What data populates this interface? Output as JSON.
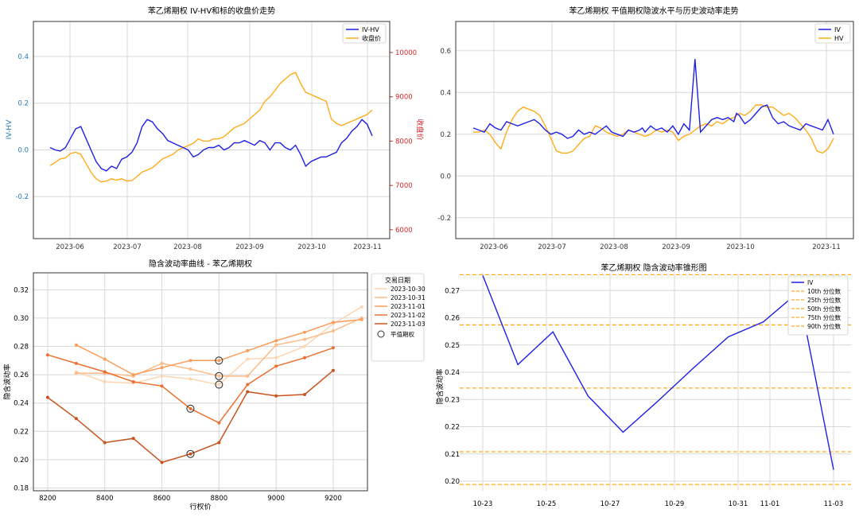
{
  "chart_data": [
    {
      "type": "line",
      "title": "苯乙烯期权 IV-HV和标的收盘价走势",
      "ylabel_left": "IV-HV",
      "ylabel_right": "收盘价",
      "xticks": [
        "2023-06",
        "2023-07",
        "2023-08",
        "2023-09",
        "2023-10",
        "2023-11"
      ],
      "yticks_left": [
        "0.4",
        "0.2",
        "0.0",
        "-0.2"
      ],
      "yticks_right": [
        "10000",
        "9000",
        "8000",
        "7000",
        "6000"
      ],
      "ylim_left": [
        -0.38,
        0.55
      ],
      "ylim_right": [
        5800,
        10700
      ],
      "colors": {
        "ivhv": "#1f1fe6",
        "close": "#ffab1a",
        "left_axis": "#1f77b4",
        "right_axis": "#d62728"
      },
      "series": [
        {
          "name": "IV-HV",
          "t": [
            0,
            1,
            2,
            3,
            4,
            5,
            6,
            7,
            8,
            9,
            10,
            11,
            12,
            13,
            14,
            15,
            16,
            17,
            18,
            19,
            20,
            21,
            22,
            23,
            24,
            25,
            26,
            27,
            28,
            29,
            30,
            31,
            32,
            33,
            34,
            35,
            36,
            37,
            38,
            39,
            40,
            41,
            42,
            43,
            44,
            45,
            46,
            47,
            48,
            49,
            50,
            51,
            52,
            53,
            54,
            55,
            56,
            57,
            58,
            59,
            60,
            61,
            62,
            63
          ],
          "values": [
            0.01,
            0.0,
            -0.005,
            0.01,
            0.05,
            0.09,
            0.1,
            0.05,
            0.0,
            -0.05,
            -0.08,
            -0.09,
            -0.07,
            -0.08,
            -0.04,
            -0.03,
            -0.01,
            0.03,
            0.1,
            0.13,
            0.12,
            0.09,
            0.07,
            0.04,
            0.03,
            0.02,
            0.01,
            0.0,
            -0.03,
            -0.02,
            0.0,
            0.01,
            0.01,
            0.02,
            0.0,
            0.01,
            0.03,
            0.03,
            0.04,
            0.03,
            0.02,
            0.04,
            0.03,
            0.0,
            0.03,
            0.03,
            0.01,
            0.0,
            0.02,
            -0.02,
            -0.07,
            -0.05,
            -0.04,
            -0.03,
            -0.03,
            -0.02,
            -0.01,
            0.03,
            0.05,
            0.08,
            0.1,
            0.13,
            0.11,
            0.06
          ]
        },
        {
          "name": "收盘价",
          "t": [
            0,
            1,
            2,
            3,
            4,
            5,
            6,
            7,
            8,
            9,
            10,
            11,
            12,
            13,
            14,
            15,
            16,
            17,
            18,
            19,
            20,
            21,
            22,
            23,
            24,
            25,
            26,
            27,
            28,
            29,
            30,
            31,
            32,
            33,
            34,
            35,
            36,
            37,
            38,
            39,
            40,
            41,
            42,
            43,
            44,
            45,
            46,
            47,
            48,
            49,
            50,
            51,
            52,
            53,
            54,
            55,
            56,
            57,
            58,
            59,
            60,
            61,
            62,
            63
          ],
          "values": [
            7450,
            7520,
            7600,
            7620,
            7720,
            7750,
            7700,
            7500,
            7300,
            7150,
            7080,
            7100,
            7150,
            7120,
            7150,
            7100,
            7110,
            7200,
            7300,
            7350,
            7400,
            7500,
            7600,
            7650,
            7700,
            7800,
            7850,
            7900,
            7950,
            8050,
            8000,
            8000,
            8050,
            8050,
            8100,
            8200,
            8300,
            8350,
            8400,
            8500,
            8600,
            8700,
            8900,
            9000,
            9150,
            9300,
            9400,
            9500,
            9550,
            9300,
            9100,
            9050,
            9000,
            8950,
            8900,
            8500,
            8400,
            8350,
            8400,
            8450,
            8500,
            8550,
            8600,
            8700
          ]
        }
      ]
    },
    {
      "type": "line",
      "title": "苯乙烯期权 平值期权隐波水平与历史波动率走势",
      "xticks": [
        "2023-06",
        "2023-07",
        "2023-08",
        "2023-09",
        "2023-10",
        "2023-11"
      ],
      "yticks": [
        "0.6",
        "0.4",
        "0.2",
        "0.0",
        "-0.2"
      ],
      "ylim": [
        -0.3,
        0.74
      ],
      "colors": {
        "iv": "#1f1fe6",
        "hv": "#ffab1a"
      },
      "series": [
        {
          "name": "IV",
          "t": [
            0,
            2,
            4,
            6,
            7,
            8,
            10,
            12,
            14,
            16,
            18,
            20,
            22,
            24,
            26,
            28,
            30,
            32,
            34,
            36,
            38,
            40,
            42,
            44,
            46,
            48,
            50,
            52,
            54,
            56,
            58,
            60,
            61,
            62,
            64,
            66,
            68,
            70,
            72,
            74,
            76,
            78,
            80,
            82,
            84,
            86,
            88,
            90,
            92,
            94,
            95,
            96,
            98,
            100,
            102,
            104,
            106,
            108,
            110,
            112,
            114,
            116,
            118,
            120,
            122,
            124,
            126,
            128,
            130
          ],
          "values": [
            0.23,
            0.22,
            0.21,
            0.25,
            0.24,
            0.23,
            0.22,
            0.26,
            0.25,
            0.24,
            0.25,
            0.26,
            0.27,
            0.25,
            0.22,
            0.2,
            0.21,
            0.2,
            0.18,
            0.19,
            0.22,
            0.2,
            0.21,
            0.2,
            0.22,
            0.24,
            0.21,
            0.2,
            0.19,
            0.22,
            0.21,
            0.22,
            0.23,
            0.21,
            0.24,
            0.22,
            0.23,
            0.21,
            0.24,
            0.2,
            0.25,
            0.22,
            0.56,
            0.21,
            0.24,
            0.27,
            0.28,
            0.27,
            0.28,
            0.26,
            0.3,
            0.29,
            0.25,
            0.27,
            0.3,
            0.33,
            0.34,
            0.28,
            0.25,
            0.26,
            0.24,
            0.23,
            0.22,
            0.25,
            0.24,
            0.23,
            0.22,
            0.27,
            0.2
          ]
        },
        {
          "name": "HV",
          "t": [
            0,
            2,
            4,
            6,
            8,
            10,
            12,
            14,
            16,
            18,
            20,
            22,
            24,
            26,
            28,
            30,
            32,
            34,
            36,
            38,
            40,
            42,
            44,
            46,
            48,
            50,
            52,
            54,
            56,
            58,
            60,
            62,
            64,
            66,
            68,
            70,
            72,
            74,
            76,
            78,
            80,
            82,
            84,
            86,
            88,
            90,
            92,
            94,
            96,
            98,
            100,
            102,
            104,
            106,
            108,
            110,
            112,
            114,
            116,
            118,
            120,
            122,
            124,
            126,
            128,
            130
          ],
          "values": [
            0.21,
            0.21,
            0.22,
            0.2,
            0.16,
            0.13,
            0.21,
            0.27,
            0.31,
            0.33,
            0.32,
            0.31,
            0.29,
            0.24,
            0.18,
            0.12,
            0.11,
            0.11,
            0.12,
            0.15,
            0.18,
            0.19,
            0.24,
            0.23,
            0.21,
            0.2,
            0.19,
            0.2,
            0.22,
            0.21,
            0.2,
            0.19,
            0.2,
            0.22,
            0.21,
            0.22,
            0.21,
            0.17,
            0.19,
            0.2,
            0.22,
            0.24,
            0.25,
            0.24,
            0.26,
            0.25,
            0.27,
            0.28,
            0.3,
            0.29,
            0.31,
            0.34,
            0.34,
            0.33,
            0.33,
            0.31,
            0.29,
            0.3,
            0.28,
            0.25,
            0.22,
            0.18,
            0.12,
            0.11,
            0.13,
            0.18
          ]
        }
      ]
    },
    {
      "type": "line",
      "title": "隐含波动率曲线 - 苯乙烯期权",
      "xlabel": "行权价",
      "ylabel": "隐含波动率",
      "xlim": [
        8150,
        9320
      ],
      "ylim": [
        0.178,
        0.332
      ],
      "xticks": [
        8200,
        8400,
        8600,
        8800,
        9000,
        9200
      ],
      "yticks": [
        0.18,
        0.2,
        0.22,
        0.24,
        0.26,
        0.28,
        0.3,
        0.32
      ],
      "legend_title": "交易日期",
      "atm_label": "平值期权",
      "series": [
        {
          "name": "2023-10-30",
          "color": "#fdd5b1",
          "x": [
            8300,
            8400,
            8500,
            8600,
            8700,
            8800,
            8900,
            9000,
            9100,
            9200,
            9300
          ],
          "values": [
            0.262,
            0.255,
            0.254,
            0.259,
            0.257,
            0.253,
            0.271,
            0.272,
            0.28,
            0.296,
            0.308
          ]
        },
        {
          "name": "2023-10-31",
          "color": "#fdbb88",
          "x": [
            8300,
            8400,
            8500,
            8600,
            8700,
            8800,
            8900,
            9000,
            9100,
            9200,
            9300
          ],
          "values": [
            0.261,
            0.261,
            0.259,
            0.268,
            0.264,
            0.259,
            0.259,
            0.281,
            0.285,
            0.291,
            0.3
          ]
        },
        {
          "name": "2023-11-01",
          "color": "#fc9c5a",
          "x": [
            8300,
            8400,
            8500,
            8600,
            8700,
            8800,
            8900,
            9000,
            9100,
            9200,
            9300
          ],
          "values": [
            0.281,
            0.271,
            0.26,
            0.265,
            0.27,
            0.27,
            0.277,
            0.284,
            0.29,
            0.297,
            0.299
          ]
        },
        {
          "name": "2023-11-02",
          "color": "#ec6f30",
          "x": [
            8200,
            8300,
            8400,
            8500,
            8600,
            8700,
            8800,
            8900,
            9000,
            9100,
            9200
          ],
          "values": [
            0.274,
            0.268,
            0.262,
            0.255,
            0.252,
            0.236,
            0.226,
            0.253,
            0.266,
            0.272,
            0.279
          ]
        },
        {
          "name": "2023-11-03",
          "color": "#c9531e",
          "x": [
            8200,
            8300,
            8400,
            8500,
            8600,
            8700,
            8800,
            8900,
            9000,
            9100,
            9200
          ],
          "values": [
            0.244,
            0.229,
            0.212,
            0.215,
            0.198,
            0.204,
            0.212,
            0.248,
            0.245,
            0.246,
            0.263
          ]
        }
      ],
      "atm_points": [
        {
          "x": 8800,
          "y": 0.253
        },
        {
          "x": 8800,
          "y": 0.259
        },
        {
          "x": 8800,
          "y": 0.27
        },
        {
          "x": 8700,
          "y": 0.236
        },
        {
          "x": 8700,
          "y": 0.204
        }
      ]
    },
    {
      "type": "line",
      "title": "苯乙烯期权 隐含波动率锥形图",
      "ylabel": "隐含波动率",
      "ylim": [
        0.1965,
        0.2765
      ],
      "xlim": [
        -0.15,
        4.65
      ],
      "yticks": [
        0.2,
        0.21,
        0.22,
        0.23,
        0.24,
        0.25,
        0.26,
        0.27
      ],
      "xticks": [
        {
          "label": "10-23",
          "pos": 0
        },
        {
          "label": "10-25",
          "pos": 1
        },
        {
          "label": "10-27",
          "pos": 2
        },
        {
          "label": "10-29",
          "pos": 3
        },
        {
          "label": "10-31",
          "pos": 4
        },
        {
          "label": "11-01",
          "pos": 4.5
        },
        {
          "label": "11-03",
          "pos": 5
        }
      ],
      "series": [
        {
          "name": "IV",
          "color": "#1f1fe6",
          "x": [
            0,
            0.5,
            1,
            1.5,
            2,
            2.5,
            3,
            3.5,
            4,
            4.5,
            5
          ],
          "values": [
            0.2755,
            0.2428,
            0.2548,
            0.2313,
            0.218,
            0.2295,
            0.2415,
            0.253,
            0.2585,
            0.2695,
            0.2042
          ]
        }
      ],
      "percentiles": [
        {
          "name": "10th 分位数",
          "value": 0.1988
        },
        {
          "name": "25th 分位数",
          "value": 0.2108
        },
        {
          "name": "50th 分位数",
          "value": 0.2342
        },
        {
          "name": "75th 分位数",
          "value": 0.2574
        },
        {
          "name": "90th 分位数",
          "value": 0.2758
        }
      ],
      "percentile_color": "#ffab1a"
    }
  ]
}
